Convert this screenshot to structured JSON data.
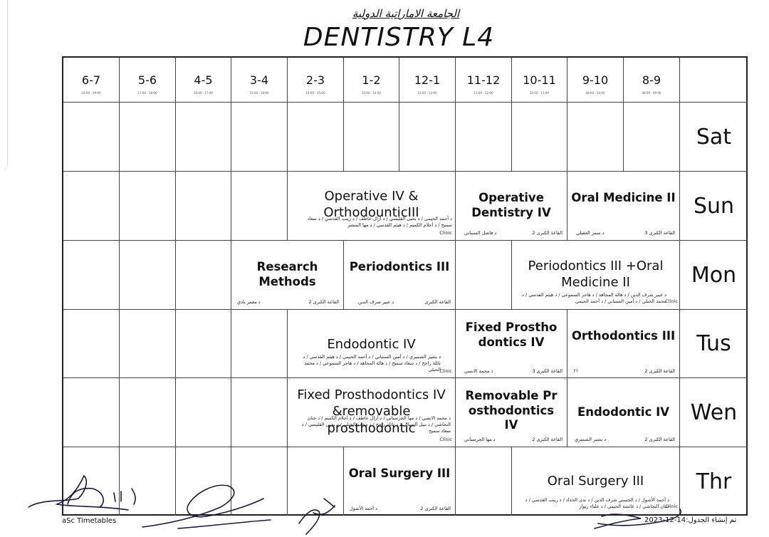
{
  "university": "الجامعة الاماراتية الدولية",
  "title": "DENTISTRY L4",
  "periods": [
    {
      "label": "6-7",
      "time": "18:00 - 19:00"
    },
    {
      "label": "5-6",
      "time": "17:00 - 18:00"
    },
    {
      "label": "4-5",
      "time": "16:00 - 17:00"
    },
    {
      "label": "3-4",
      "time": "15:00 - 16:00"
    },
    {
      "label": "2-3",
      "time": "14:00 - 15:00"
    },
    {
      "label": "1-2",
      "time": "13:00 - 14:00"
    },
    {
      "label": "12-1",
      "time": "12:00 - 13:00"
    },
    {
      "label": "11-12",
      "time": "11:00 - 12:00"
    },
    {
      "label": "10-11",
      "time": "10:00 - 11:00"
    },
    {
      "label": "9-10",
      "time": "09:00 - 10:00"
    },
    {
      "label": "8-9",
      "time": "08:00 - 09:00"
    }
  ],
  "days": [
    "Sat",
    "Sun",
    "Mon",
    "Tus",
    "Wen",
    "Thr"
  ],
  "activities": {
    "sun_operative_ortho": {
      "subject": "Operative IV & OrthodounticIII",
      "room": "Clinic",
      "teacher": "د أحمد الحيمي / د يحيى القليسي / د أزال عاطف / د زينب القدسي / د سعاد سميح / د أحلام الكميم / د هيثم القدسي / د مها المنصر"
    },
    "sun_operative": {
      "subject": "Operative Dentistry IV",
      "room": "القاعة الكبرى 2",
      "teacher": "د فاضل السنباني"
    },
    "sun_oral_med": {
      "subject": "Oral Medicine II",
      "room": "القاعة الكبرى 3",
      "teacher": "د سمر العقيلي"
    },
    "mon_research": {
      "subject": "Research Methods",
      "room": "القاعة الكبرى 2",
      "teacher": "د معمر بادي"
    },
    "mon_perio": {
      "subject": "Periodontics III",
      "room": "القاعة الكبرى",
      "teacher": "د عبير شرف الدين"
    },
    "mon_perio_oral": {
      "subject": "Periodontics III +Oral Medicine II",
      "room": "Clinic",
      "teacher": "د عبير شرف الدين / د هالة المجاهد / د هاجر السموعي / د هيثم القدسي / د محمد الحبلي / د أمين السنباني / د أحمد الحيمي"
    },
    "tus_endo": {
      "subject": "Endodontic IV",
      "room": "Clinic",
      "teacher": "د بشير الشميري / د أمين السنباني / د أحمد الحيمي / د هيثم القدسي / د نائلة راجح / د سعاد سميح / د هالة المجاهد / د هاجر السموعي / د محمد الحبلي"
    },
    "tus_fixed": {
      "subject": "Fixed Prosthodontics IV",
      "room": "القاعة الكبرى 3",
      "teacher": "د محمد الانسي"
    },
    "tus_ortho": {
      "subject": "Orthodontics III",
      "room": "القاعة الكبرى 2",
      "teacher": "??"
    },
    "wen_fixed_rem": {
      "subject": "Fixed Prosthodontics IV &removable prosthodontic",
      "room": "Clinic",
      "teacher": "د محمد الانسي / د مها الجرسباني / د أزال عاطف / د أحلام الكميم / د حنان النجاشي / د نبيل السباني / د نائلة راجح / د محمد الحبلي / د يحيى القليسي / د سعاد سميح"
    },
    "wen_removable": {
      "subject": "Removable Prosthodontics IV",
      "room": "القاعة الكبرى 2",
      "teacher": "د مها الجرسباني"
    },
    "wen_endo": {
      "subject": "Endodontic IV",
      "room": "القاعة الكبرى 2",
      "teacher": "د بشير الشميري"
    },
    "thr_oral_surg": {
      "subject": "Oral Surgery III",
      "room": "القاعة الكبرى 2",
      "teacher": "د أحمد الأشول"
    },
    "thr_oral_surg_clinic": {
      "subject": "Oral Surgery III",
      "room": "Clinic",
      "teacher": "د أحمد الأشول / د الحسني شرف الدين / د ندى الحداد / د زينب القدسي / د حنان النجاشي / د عائشة الحيمي / د علياء ريوار"
    }
  },
  "footer": {
    "app": "aSc Timetables",
    "generated": "تم إنشاء الجدول:14-12-2023"
  }
}
